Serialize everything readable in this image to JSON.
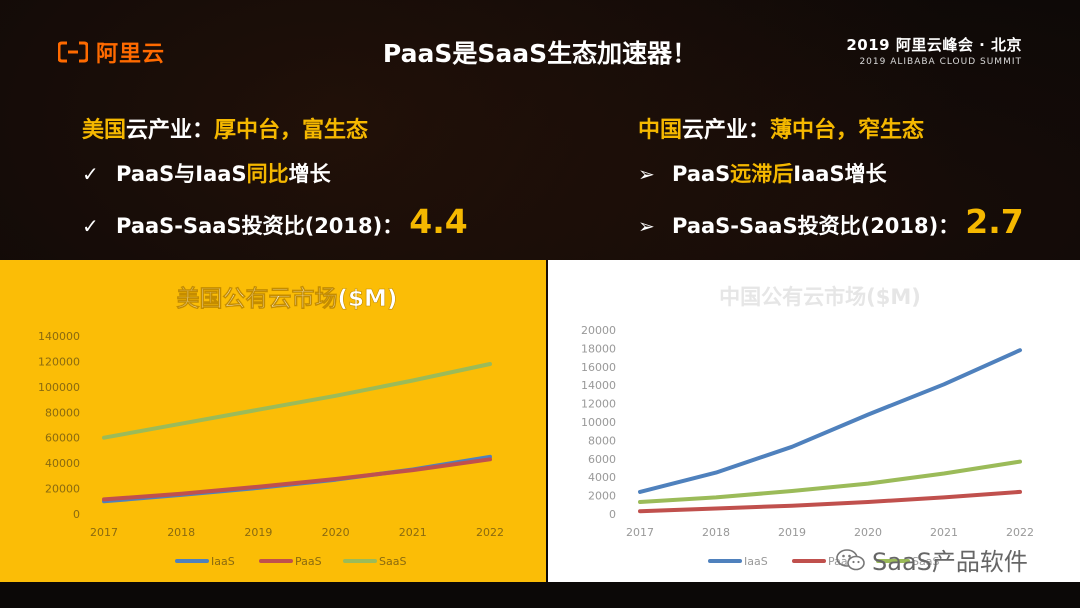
{
  "header": {
    "logo_text": "阿里云",
    "title": "PaaS是SaaS生态加速器！",
    "summit_line1": "2019 阿里云峰会 · 北京",
    "summit_line2": "2019 ALIBABA CLOUD SUMMIT"
  },
  "left": {
    "heading_prefix": "美国",
    "heading_rest": "云产业：",
    "heading_value": "厚中台，富生态",
    "bullet1_mark": "✓",
    "bullet1_a": "PaaS与IaaS",
    "bullet1_hl": "同比",
    "bullet1_b": "增长",
    "bullet2_mark": "✓",
    "bullet2_text": "PaaS-SaaS投资比(2018)：",
    "bullet2_value": "4.4"
  },
  "right": {
    "heading_prefix": "中国",
    "heading_rest": "云产业：",
    "heading_value": "薄中台，窄生态",
    "bullet1_mark": "➢",
    "bullet1_a": "PaaS",
    "bullet1_hl": "远滞后",
    "bullet1_b": "IaaS增长",
    "bullet2_mark": "➢",
    "bullet2_text": "PaaS-SaaS投资比(2018)：",
    "bullet2_value": "2.7"
  },
  "chart_data": [
    {
      "type": "line",
      "title": "美国公有云市场($M)",
      "x": [
        "2017",
        "2018",
        "2019",
        "2020",
        "2021",
        "2022"
      ],
      "ylim": [
        0,
        140000
      ],
      "yticks": [
        0,
        20000,
        40000,
        60000,
        80000,
        100000,
        120000,
        140000
      ],
      "grid": false,
      "legend": "bottom",
      "series": [
        {
          "name": "IaaS",
          "color": "#4f81bd",
          "values": [
            10000,
            15000,
            20500,
            27000,
            35000,
            45000
          ]
        },
        {
          "name": "PaaS",
          "color": "#c0504d",
          "values": [
            11500,
            16000,
            21500,
            27500,
            34500,
            43000
          ]
        },
        {
          "name": "SaaS",
          "color": "#9bbb59",
          "values": [
            60000,
            71000,
            82000,
            93000,
            105000,
            118000
          ]
        }
      ]
    },
    {
      "type": "line",
      "title": "中国公有云市场($M)",
      "x": [
        "2017",
        "2018",
        "2019",
        "2020",
        "2021",
        "2022"
      ],
      "ylim": [
        0,
        20000
      ],
      "yticks": [
        0,
        2000,
        4000,
        6000,
        8000,
        10000,
        12000,
        14000,
        16000,
        18000,
        20000
      ],
      "grid": false,
      "legend": "bottom",
      "series": [
        {
          "name": "IaaS",
          "color": "#4f81bd",
          "values": [
            2400,
            4500,
            7300,
            10800,
            14100,
            17800
          ]
        },
        {
          "name": "PaaS",
          "color": "#c0504d",
          "values": [
            300,
            600,
            900,
            1300,
            1800,
            2400
          ]
        },
        {
          "name": "SaaS",
          "color": "#9bbb59",
          "values": [
            1300,
            1800,
            2500,
            3300,
            4400,
            5700
          ]
        }
      ]
    }
  ],
  "watermark": {
    "text": "SaaS产品软件",
    "icon": "wechat-icon"
  }
}
